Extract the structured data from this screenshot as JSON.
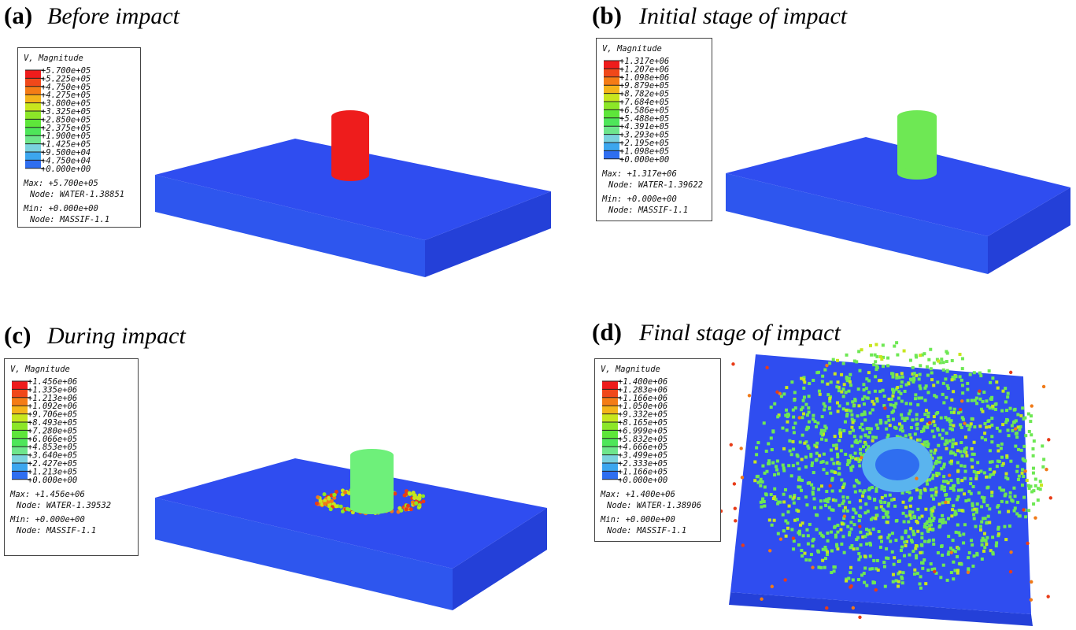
{
  "panels": [
    {
      "label": "(a)",
      "title": "Before impact",
      "legend": {
        "title": "V, Magnitude",
        "entries": [
          "+5.700e+05",
          "+5.225e+05",
          "+4.750e+05",
          "+4.275e+05",
          "+3.800e+05",
          "+3.325e+05",
          "+2.850e+05",
          "+2.375e+05",
          "+1.900e+05",
          "+1.425e+05",
          "+9.500e+04",
          "+4.750e+04",
          "+0.000e+00"
        ],
        "max": "Max: +5.700e+05",
        "max_node": "Node: WATER-1.38851",
        "min": "Min: +0.000e+00",
        "min_node": "Node: MASSIF-1.1"
      }
    },
    {
      "label": "(b)",
      "title": "Initial stage of impact",
      "legend": {
        "title": "V, Magnitude",
        "entries": [
          "+1.317e+06",
          "+1.207e+06",
          "+1.098e+06",
          "+9.879e+05",
          "+8.782e+05",
          "+7.684e+05",
          "+6.586e+05",
          "+5.488e+05",
          "+4.391e+05",
          "+3.293e+05",
          "+2.195e+05",
          "+1.098e+05",
          "+0.000e+00"
        ],
        "max": "Max: +1.317e+06",
        "max_node": "Node: WATER-1.39622",
        "min": "Min: +0.000e+00",
        "min_node": "Node: MASSIF-1.1"
      }
    },
    {
      "label": "(c)",
      "title": "During impact",
      "legend": {
        "title": "V, Magnitude",
        "entries": [
          "+1.456e+06",
          "+1.335e+06",
          "+1.213e+06",
          "+1.092e+06",
          "+9.706e+05",
          "+8.493e+05",
          "+7.280e+05",
          "+6.066e+05",
          "+4.853e+05",
          "+3.640e+05",
          "+2.427e+05",
          "+1.213e+05",
          "+0.000e+00"
        ],
        "max": "Max: +1.456e+06",
        "max_node": "Node: WATER-1.39532",
        "min": "Min: +0.000e+00",
        "min_node": "Node: MASSIF-1.1"
      }
    },
    {
      "label": "(d)",
      "title": "Final stage of impact",
      "legend": {
        "title": "V, Magnitude",
        "entries": [
          "+1.400e+06",
          "+1.283e+06",
          "+1.166e+06",
          "+1.050e+06",
          "+9.332e+05",
          "+8.165e+05",
          "+6.999e+05",
          "+5.832e+05",
          "+4.666e+05",
          "+3.499e+05",
          "+2.333e+05",
          "+1.166e+05",
          "+0.000e+00"
        ],
        "max": "Max: +1.400e+06",
        "max_node": "Node: WATER-1.38906",
        "min": "Min: +0.000e+00",
        "min_node": "Node: MASSIF-1.1"
      }
    }
  ]
}
